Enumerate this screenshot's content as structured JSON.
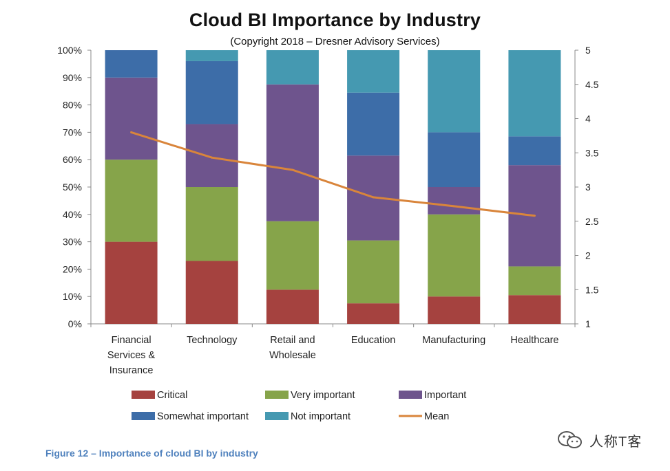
{
  "header": {
    "title": "Cloud BI Importance by Industry",
    "subtitle": "(Copyright 2018 – Dresner Advisory Services)"
  },
  "caption": "Figure 12 – Importance of cloud BI by industry",
  "watermark": {
    "text": "人称T客",
    "icon": "wechat-icon"
  },
  "chart_data": {
    "type": "bar",
    "stacked": true,
    "categories": [
      [
        "Financial",
        "Services &",
        "Insurance"
      ],
      [
        "Technology"
      ],
      [
        "Retail and",
        "Wholesale"
      ],
      [
        "Education"
      ],
      [
        "Manufacturing"
      ],
      [
        "Healthcare"
      ]
    ],
    "series": [
      {
        "name": "Critical",
        "color": "#a5423f",
        "values": [
          30,
          23,
          12.5,
          7.5,
          10,
          10.5
        ]
      },
      {
        "name": "Very important",
        "color": "#86a44a",
        "values": [
          30,
          27,
          25,
          23,
          30,
          10.5
        ]
      },
      {
        "name": "Important",
        "color": "#6e548d",
        "values": [
          30,
          23,
          50,
          31,
          10,
          37
        ]
      },
      {
        "name": "Somewhat important",
        "color": "#3d6da8",
        "values": [
          10,
          23,
          0,
          23,
          20,
          10.5
        ]
      },
      {
        "name": "Not important",
        "color": "#4599b1",
        "values": [
          0,
          4,
          12.5,
          15.5,
          30,
          31.5
        ]
      }
    ],
    "mean": {
      "name": "Mean",
      "color": "#d9853b",
      "values": [
        3.8,
        3.43,
        3.25,
        2.85,
        2.72,
        2.58
      ]
    },
    "y_left": {
      "min": 0,
      "max": 100,
      "ticks": [
        "0%",
        "10%",
        "20%",
        "30%",
        "40%",
        "50%",
        "60%",
        "70%",
        "80%",
        "90%",
        "100%"
      ]
    },
    "y_right": {
      "min": 1,
      "max": 5,
      "ticks": [
        "1",
        "1.5",
        "2",
        "2.5",
        "3",
        "3.5",
        "4",
        "4.5",
        "5"
      ]
    },
    "legend_position": "bottom"
  }
}
